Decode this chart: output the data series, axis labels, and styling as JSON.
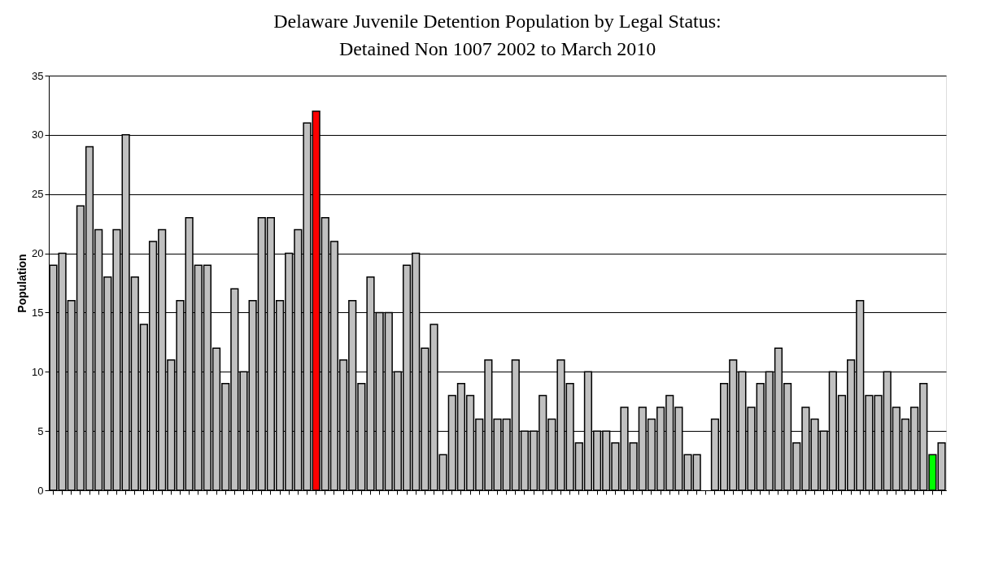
{
  "chart_data": {
    "type": "bar",
    "title": [
      "Delaware Juvenile Detention Population by Legal Status:",
      "Detained Non 1007  2002 to March 2010"
    ],
    "ylabel": "Population",
    "categories": [
      null,
      null,
      null,
      null,
      null,
      null,
      null,
      null,
      null,
      null,
      null,
      null,
      null,
      null,
      null,
      null,
      null,
      null,
      null,
      null,
      null,
      null,
      null,
      null,
      null,
      null,
      null,
      null,
      null,
      null,
      null,
      null,
      null,
      null,
      null,
      null,
      null,
      null,
      null,
      null,
      null,
      null,
      null,
      null,
      null,
      null,
      null,
      null,
      null,
      null,
      null,
      null,
      null,
      null,
      null,
      null,
      null,
      null,
      null,
      null,
      null,
      null,
      null,
      null,
      null,
      null,
      null,
      null,
      null,
      null,
      null,
      null,
      null,
      null,
      null,
      null,
      null,
      null,
      null,
      null,
      null,
      null,
      null,
      null,
      null,
      null,
      null,
      null,
      null,
      null,
      null,
      null,
      null,
      null,
      null,
      null,
      null,
      null,
      null
    ],
    "values": [
      19,
      20,
      16,
      24,
      29,
      22,
      18,
      22,
      30,
      18,
      14,
      21,
      22,
      11,
      16,
      23,
      19,
      19,
      12,
      9,
      17,
      10,
      16,
      23,
      23,
      16,
      20,
      22,
      31,
      32,
      23,
      21,
      11,
      16,
      9,
      18,
      15,
      15,
      10,
      19,
      20,
      12,
      14,
      3,
      8,
      9,
      8,
      6,
      11,
      6,
      6,
      11,
      5,
      5,
      8,
      6,
      11,
      9,
      4,
      10,
      5,
      5,
      4,
      7,
      4,
      7,
      6,
      7,
      8,
      7,
      3,
      3,
      null,
      6,
      9,
      11,
      10,
      7,
      9,
      10,
      12,
      9,
      4,
      7,
      6,
      5,
      10,
      8,
      11,
      16,
      8,
      8,
      10,
      7,
      6,
      7,
      9,
      3,
      4
    ],
    "colors": [
      "#c0c0c0",
      "#c0c0c0",
      "#c0c0c0",
      "#c0c0c0",
      "#c0c0c0",
      "#c0c0c0",
      "#c0c0c0",
      "#c0c0c0",
      "#c0c0c0",
      "#c0c0c0",
      "#c0c0c0",
      "#c0c0c0",
      "#c0c0c0",
      "#c0c0c0",
      "#c0c0c0",
      "#c0c0c0",
      "#c0c0c0",
      "#c0c0c0",
      "#c0c0c0",
      "#c0c0c0",
      "#c0c0c0",
      "#c0c0c0",
      "#c0c0c0",
      "#c0c0c0",
      "#c0c0c0",
      "#c0c0c0",
      "#c0c0c0",
      "#c0c0c0",
      "#c0c0c0",
      "#ff0000",
      "#c0c0c0",
      "#c0c0c0",
      "#c0c0c0",
      "#c0c0c0",
      "#c0c0c0",
      "#c0c0c0",
      "#c0c0c0",
      "#c0c0c0",
      "#c0c0c0",
      "#c0c0c0",
      "#c0c0c0",
      "#c0c0c0",
      "#c0c0c0",
      "#c0c0c0",
      "#c0c0c0",
      "#c0c0c0",
      "#c0c0c0",
      "#c0c0c0",
      "#c0c0c0",
      "#c0c0c0",
      "#c0c0c0",
      "#c0c0c0",
      "#c0c0c0",
      "#c0c0c0",
      "#c0c0c0",
      "#c0c0c0",
      "#c0c0c0",
      "#c0c0c0",
      "#c0c0c0",
      "#c0c0c0",
      "#c0c0c0",
      "#c0c0c0",
      "#c0c0c0",
      "#c0c0c0",
      "#c0c0c0",
      "#c0c0c0",
      "#c0c0c0",
      "#c0c0c0",
      "#c0c0c0",
      "#c0c0c0",
      "#c0c0c0",
      "#c0c0c0",
      "#c0c0c0",
      "#c0c0c0",
      "#c0c0c0",
      "#c0c0c0",
      "#c0c0c0",
      "#c0c0c0",
      "#c0c0c0",
      "#c0c0c0",
      "#c0c0c0",
      "#c0c0c0",
      "#c0c0c0",
      "#c0c0c0",
      "#c0c0c0",
      "#c0c0c0",
      "#c0c0c0",
      "#c0c0c0",
      "#c0c0c0",
      "#c0c0c0",
      "#c0c0c0",
      "#c0c0c0",
      "#c0c0c0",
      "#c0c0c0",
      "#c0c0c0",
      "#c0c0c0",
      "#c0c0c0",
      "#00ff00",
      "#c0c0c0"
    ],
    "ylim": [
      0,
      35
    ],
    "yticks": [
      0,
      5,
      10,
      15,
      20,
      25,
      30,
      35
    ],
    "grid": "y",
    "tick_labels": "y"
  }
}
